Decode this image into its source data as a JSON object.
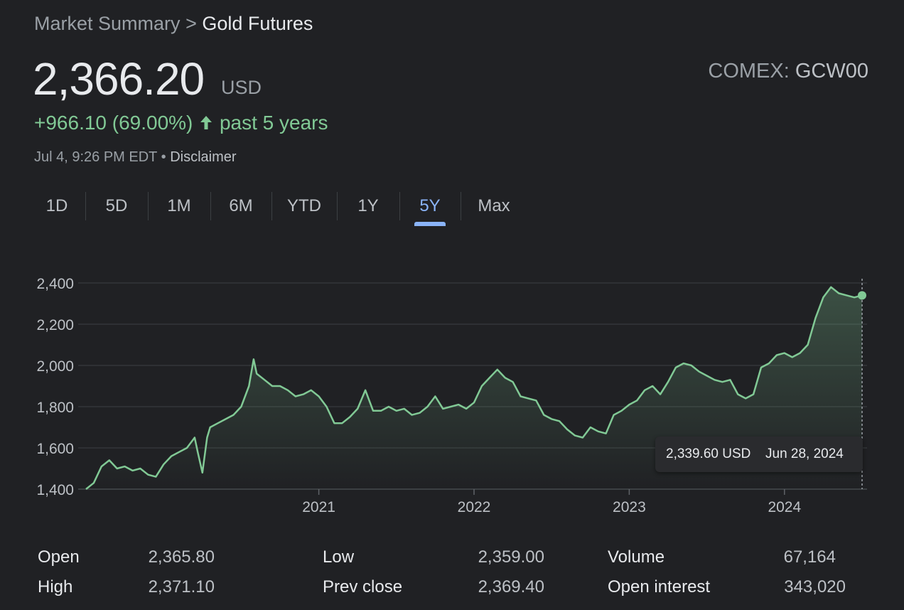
{
  "breadcrumb": {
    "parent": "Market Summary",
    "separator": ">",
    "current": "Gold Futures"
  },
  "quote": {
    "price": "2,366.20",
    "currency": "USD",
    "exchange_label": "COMEX:",
    "symbol": "GCW00",
    "change": "+966.10 (69.00%)",
    "period": "past 5 years",
    "change_color": "#81c995",
    "timestamp": "Jul 4, 9:26 PM EDT",
    "bullet": "•",
    "disclaimer": "Disclaimer"
  },
  "tabs": [
    {
      "label": "1D"
    },
    {
      "label": "5D"
    },
    {
      "label": "1M"
    },
    {
      "label": "6M"
    },
    {
      "label": "YTD"
    },
    {
      "label": "1Y"
    },
    {
      "label": "5Y",
      "active": true
    },
    {
      "label": "Max"
    }
  ],
  "chart_data": {
    "type": "area",
    "line_color": "#81c995",
    "accent_active_tab": "#8ab4f8",
    "ylim": [
      1400,
      2400
    ],
    "yticks": [
      2400,
      2200,
      2000,
      1800,
      1600,
      1400
    ],
    "ytick_labels": [
      "2,400",
      "2,200",
      "2,000",
      "1,800",
      "1,600",
      "1,400"
    ],
    "xticks": [
      2021,
      2022,
      2023,
      2024
    ],
    "xtick_labels": [
      "2021",
      "2022",
      "2023",
      "2024"
    ],
    "grid": true,
    "series": [
      {
        "x": [
          2019.5,
          2019.55,
          2019.6,
          2019.65,
          2019.7,
          2019.75,
          2019.8,
          2019.85,
          2019.9,
          2019.95,
          2020.0,
          2020.05,
          2020.1,
          2020.15,
          2020.2,
          2020.22,
          2020.25,
          2020.28,
          2020.3,
          2020.35,
          2020.4,
          2020.45,
          2020.5,
          2020.55,
          2020.58,
          2020.6,
          2020.65,
          2020.7,
          2020.75,
          2020.8,
          2020.85,
          2020.9,
          2020.95,
          2021.0,
          2021.05,
          2021.1,
          2021.15,
          2021.2,
          2021.25,
          2021.3,
          2021.35,
          2021.4,
          2021.45,
          2021.5,
          2021.55,
          2021.6,
          2021.65,
          2021.7,
          2021.75,
          2021.8,
          2021.85,
          2021.9,
          2021.95,
          2022.0,
          2022.05,
          2022.1,
          2022.15,
          2022.2,
          2022.25,
          2022.3,
          2022.35,
          2022.4,
          2022.45,
          2022.5,
          2022.55,
          2022.6,
          2022.65,
          2022.7,
          2022.75,
          2022.8,
          2022.85,
          2022.9,
          2022.95,
          2023.0,
          2023.05,
          2023.1,
          2023.15,
          2023.2,
          2023.25,
          2023.3,
          2023.35,
          2023.4,
          2023.45,
          2023.5,
          2023.55,
          2023.6,
          2023.65,
          2023.7,
          2023.75,
          2023.8,
          2023.85,
          2023.9,
          2023.95,
          2024.0,
          2024.05,
          2024.1,
          2024.15,
          2024.2,
          2024.25,
          2024.3,
          2024.35,
          2024.4,
          2024.45,
          2024.5
        ],
        "y": [
          1400,
          1430,
          1510,
          1540,
          1500,
          1510,
          1490,
          1500,
          1470,
          1460,
          1520,
          1560,
          1580,
          1600,
          1650,
          1580,
          1480,
          1650,
          1700,
          1720,
          1740,
          1760,
          1800,
          1900,
          2030,
          1960,
          1930,
          1900,
          1900,
          1880,
          1850,
          1860,
          1880,
          1850,
          1800,
          1720,
          1720,
          1750,
          1790,
          1880,
          1780,
          1780,
          1800,
          1780,
          1790,
          1760,
          1770,
          1800,
          1850,
          1790,
          1800,
          1810,
          1790,
          1820,
          1900,
          1940,
          1980,
          1940,
          1920,
          1850,
          1840,
          1830,
          1760,
          1740,
          1730,
          1690,
          1660,
          1650,
          1700,
          1680,
          1670,
          1760,
          1780,
          1810,
          1830,
          1880,
          1900,
          1860,
          1920,
          1990,
          2010,
          2000,
          1970,
          1950,
          1930,
          1920,
          1930,
          1860,
          1840,
          1860,
          1990,
          2010,
          2050,
          2060,
          2040,
          2060,
          2100,
          2230,
          2330,
          2380,
          2350,
          2340,
          2330,
          2340
        ]
      }
    ],
    "last_point": {
      "value": 2339.6,
      "label": "2,339.60 USD",
      "date": "Jun 28, 2024"
    }
  },
  "stats": [
    {
      "label": "Open",
      "value": "2,365.80"
    },
    {
      "label": "High",
      "value": "2,371.10"
    },
    {
      "label": "Low",
      "value": "2,359.00"
    },
    {
      "label": "Prev close",
      "value": "2,369.40"
    },
    {
      "label": "Volume",
      "value": "67,164"
    },
    {
      "label": "Open interest",
      "value": "343,020"
    }
  ]
}
